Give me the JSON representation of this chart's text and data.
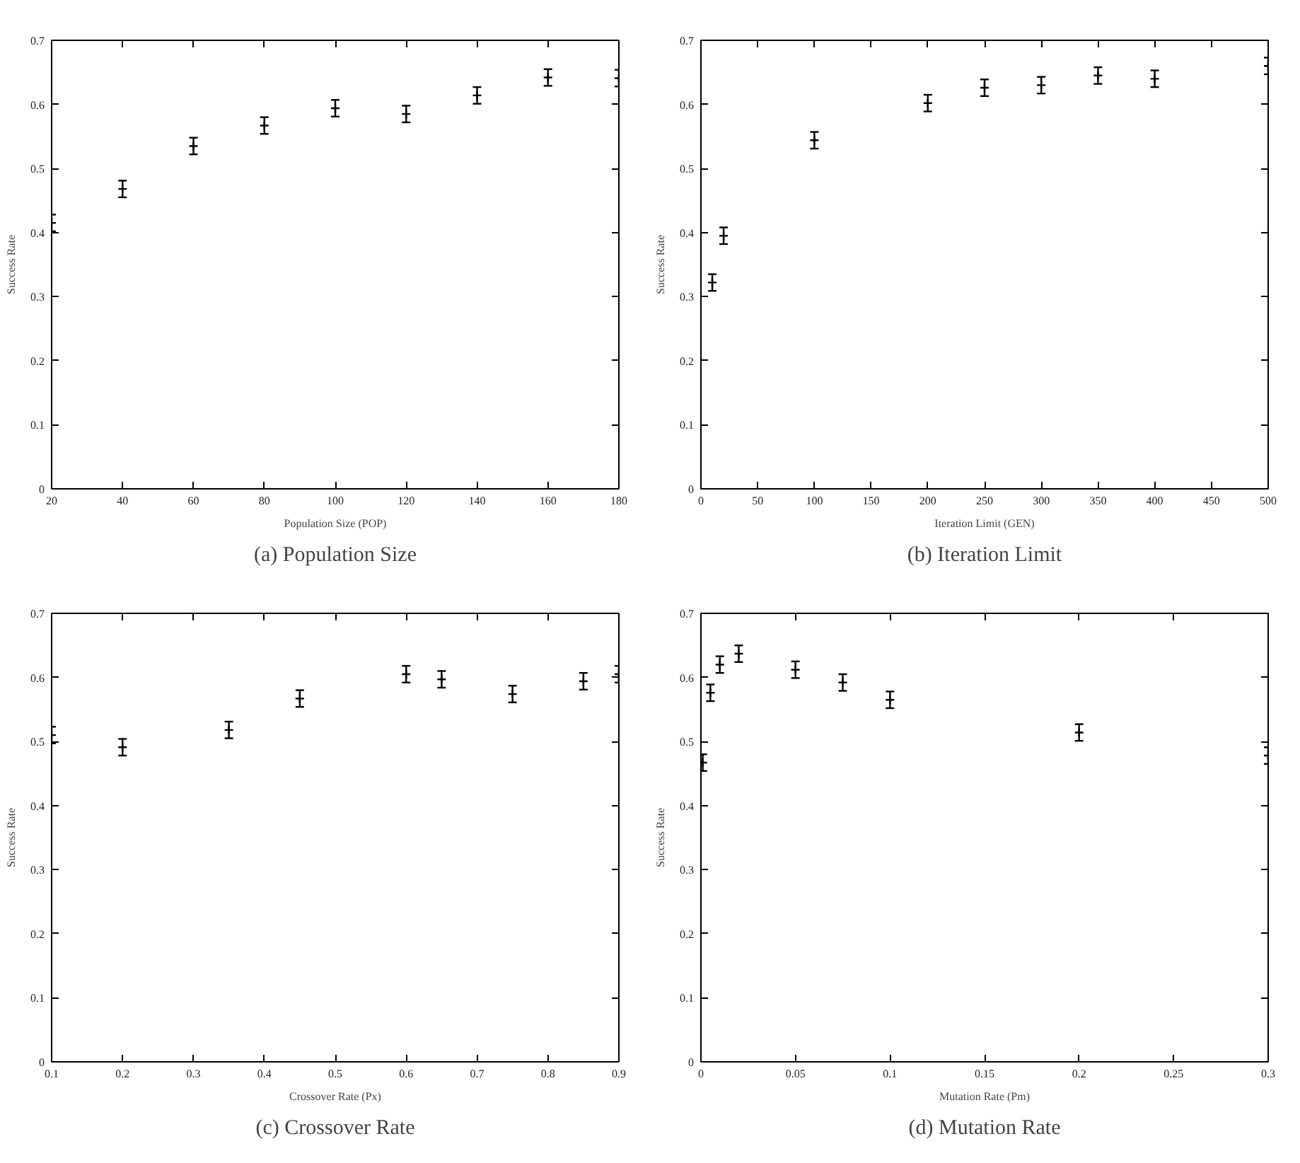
{
  "chart_data": [
    {
      "type": "scatter",
      "title": "(a) Population Size",
      "xlabel": "Population Size (POP)",
      "ylabel": "Success Rate",
      "marker": "cross",
      "x": [
        20,
        40,
        60,
        80,
        100,
        120,
        140,
        160,
        180
      ],
      "xlim": [
        20,
        180
      ],
      "xticks": [
        20,
        40,
        60,
        80,
        100,
        120,
        140,
        160,
        180
      ],
      "ylim": [
        0,
        0.7
      ],
      "yticks": [
        0,
        0.1,
        0.2,
        0.3,
        0.4,
        0.5,
        0.6,
        0.7
      ],
      "series": [
        {
          "color": "#000000",
          "values": [
            0.415,
            0.468,
            0.535,
            0.567,
            0.594,
            0.585,
            0.614,
            0.642,
            0.641
          ],
          "errors": [
            0.013,
            0.013,
            0.013,
            0.013,
            0.013,
            0.013,
            0.013,
            0.013,
            0.013
          ]
        }
      ]
    },
    {
      "type": "scatter",
      "title": "(b) Iteration Limit",
      "xlabel": "Iteration Limit (GEN)",
      "ylabel": "Success Rate",
      "marker": "cross",
      "x": [
        10,
        20,
        100,
        200,
        250,
        300,
        350,
        400,
        500
      ],
      "xlim": [
        0,
        500
      ],
      "xticks": [
        0,
        50,
        100,
        150,
        200,
        250,
        300,
        350,
        400,
        450,
        500
      ],
      "ylim": [
        0,
        0.7
      ],
      "yticks": [
        0,
        0.1,
        0.2,
        0.3,
        0.4,
        0.5,
        0.6,
        0.7
      ],
      "series": [
        {
          "color": "#000000",
          "values": [
            0.322,
            0.395,
            0.544,
            0.602,
            0.626,
            0.63,
            0.645,
            0.64,
            0.66
          ],
          "errors": [
            0.013,
            0.013,
            0.013,
            0.013,
            0.013,
            0.013,
            0.013,
            0.013,
            0.013
          ]
        }
      ]
    },
    {
      "type": "scatter",
      "title": "(c) Crossover Rate",
      "xlabel": "Crossover Rate (Px)",
      "ylabel": "Success Rate",
      "marker": "cross",
      "x": [
        0.1,
        0.2,
        0.35,
        0.45,
        0.6,
        0.65,
        0.75,
        0.85,
        0.9
      ],
      "xlim": [
        0.1,
        0.9
      ],
      "xticks": [
        0.1,
        0.2,
        0.3,
        0.4,
        0.5,
        0.6,
        0.7,
        0.8,
        0.9
      ],
      "ylim": [
        0,
        0.7
      ],
      "yticks": [
        0,
        0.1,
        0.2,
        0.3,
        0.4,
        0.5,
        0.6,
        0.7
      ],
      "series": [
        {
          "color": "#000000",
          "values": [
            0.51,
            0.491,
            0.518,
            0.567,
            0.605,
            0.597,
            0.574,
            0.594,
            0.605
          ],
          "errors": [
            0.013,
            0.013,
            0.013,
            0.013,
            0.013,
            0.013,
            0.013,
            0.013,
            0.013
          ]
        }
      ]
    },
    {
      "type": "scatter",
      "title": "(d) Mutation Rate",
      "xlabel": "Mutation Rate (Pm)",
      "ylabel": "Success Rate",
      "marker": "cross",
      "x": [
        0.001,
        0.005,
        0.01,
        0.02,
        0.05,
        0.075,
        0.1,
        0.2,
        0.3
      ],
      "xlim": [
        0,
        0.3
      ],
      "xticks": [
        0,
        0.05,
        0.1,
        0.15,
        0.2,
        0.25,
        0.3
      ],
      "ylim": [
        0,
        0.7
      ],
      "yticks": [
        0,
        0.1,
        0.2,
        0.3,
        0.4,
        0.5,
        0.6,
        0.7
      ],
      "series": [
        {
          "color": "#000000",
          "values": [
            0.467,
            0.576,
            0.62,
            0.637,
            0.612,
            0.592,
            0.565,
            0.514,
            0.478
          ],
          "errors": [
            0.013,
            0.013,
            0.013,
            0.013,
            0.013,
            0.013,
            0.013,
            0.013,
            0.013
          ]
        }
      ]
    }
  ]
}
